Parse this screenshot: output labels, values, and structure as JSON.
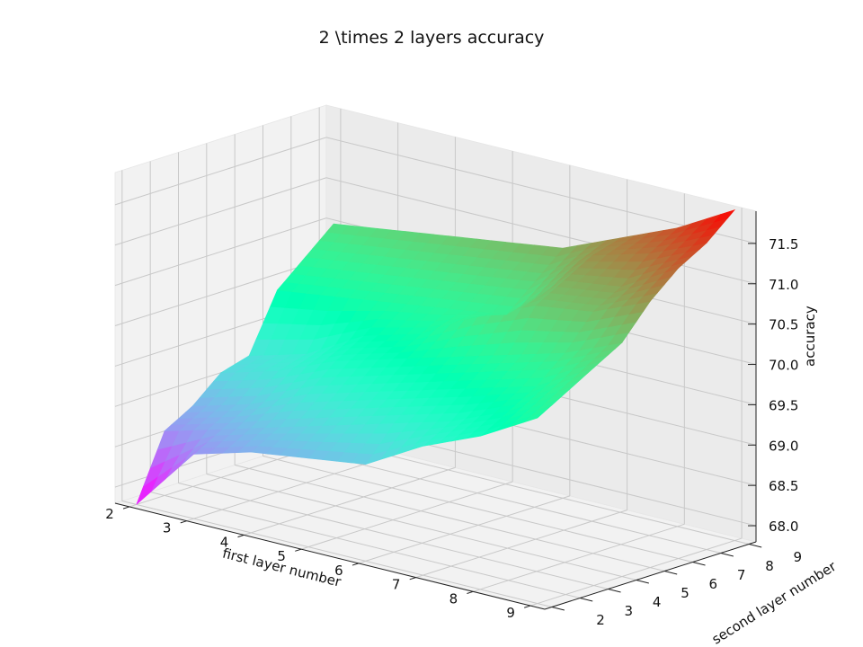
{
  "chart_data": {
    "type": "surface3d",
    "title": "2 \\times 2 layers accuracy",
    "xlabel": "first layer number",
    "ylabel": "second layer number",
    "zlabel": "accuracy",
    "x": [
      2,
      3,
      4,
      5,
      6,
      7,
      8,
      9
    ],
    "y": [
      2,
      3,
      4,
      5,
      6,
      7,
      8,
      9
    ],
    "zlim": [
      67.8,
      71.9
    ],
    "xticks": [
      "2",
      "3",
      "4",
      "5",
      "6",
      "7",
      "8",
      "9"
    ],
    "yticks": [
      "2",
      "3",
      "4",
      "5",
      "6",
      "7",
      "8",
      "9"
    ],
    "zticks": [
      "68.0",
      "68.5",
      "69.0",
      "69.5",
      "70.0",
      "70.5",
      "71.0",
      "71.5"
    ],
    "colormap": "rainbow",
    "grid": true,
    "z": [
      [
        67.8,
        68.6,
        68.8,
        69.1,
        69.2,
        69.9,
        70.2,
        70.5
      ],
      [
        68.6,
        68.8,
        69.0,
        69.3,
        69.4,
        70.0,
        70.3,
        70.6
      ],
      [
        68.8,
        69.0,
        69.3,
        69.6,
        69.8,
        70.1,
        70.4,
        70.7
      ],
      [
        68.9,
        69.2,
        69.5,
        69.8,
        70.0,
        70.2,
        70.5,
        70.8
      ],
      [
        69.0,
        69.4,
        69.7,
        70.0,
        70.4,
        70.3,
        70.6,
        70.9
      ],
      [
        69.4,
        69.6,
        69.9,
        70.2,
        70.7,
        70.9,
        71.1,
        71.2
      ],
      [
        69.7,
        69.9,
        70.1,
        70.4,
        70.8,
        71.0,
        71.3,
        71.5
      ],
      [
        70.1,
        70.3,
        70.5,
        70.7,
        71.1,
        71.4,
        71.6,
        71.9
      ]
    ]
  }
}
